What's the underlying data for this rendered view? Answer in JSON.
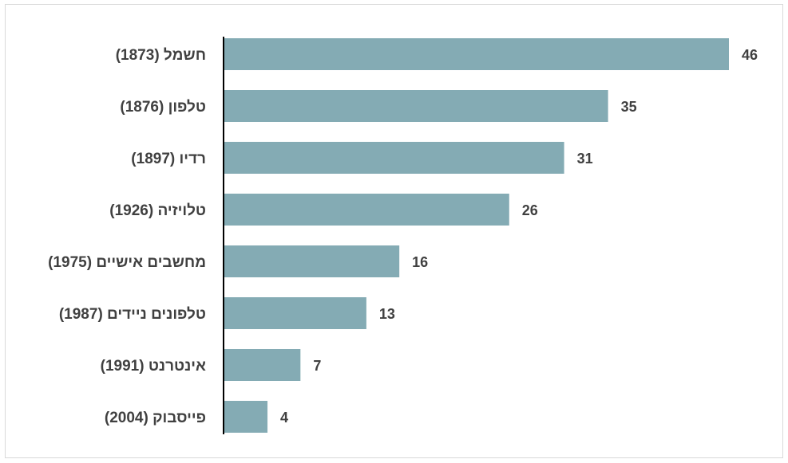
{
  "chart_data": {
    "type": "bar",
    "orientation": "horizontal",
    "categories": [
      "חשמל (1873)",
      "טלפון (1876)",
      "רדיו (1897)",
      "טלויזיה (1926)",
      "מחשבים אישיים (1975)",
      "טלפונים ניידים (1987)",
      "אינטרנט (1991)",
      "פייסבוק (2004)"
    ],
    "values": [
      46,
      35,
      31,
      26,
      16,
      13,
      7,
      4
    ],
    "title": "",
    "xlabel": "",
    "ylabel": "",
    "xlim": [
      0,
      46
    ],
    "grid": false,
    "legend": "none",
    "bar_color": "#84abb4",
    "axis_color": "#000000",
    "label_color": "#404040",
    "data_labels": true
  }
}
